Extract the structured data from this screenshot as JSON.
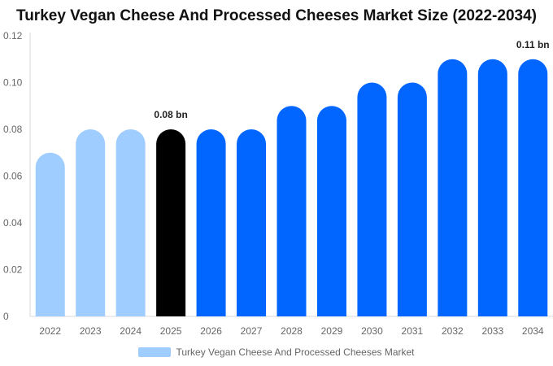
{
  "chart_data": {
    "type": "bar",
    "title": "Turkey Vegan Cheese And Processed Cheeses Market Size (2022-2034)",
    "categories": [
      "2022",
      "2023",
      "2024",
      "2025",
      "2026",
      "2027",
      "2028",
      "2029",
      "2030",
      "2031",
      "2032",
      "2033",
      "2034"
    ],
    "series": [
      {
        "name": "Turkey Vegan Cheese And Processed Cheeses Market",
        "values": [
          0.07,
          0.08,
          0.08,
          0.08,
          0.08,
          0.08,
          0.09,
          0.09,
          0.1,
          0.1,
          0.11,
          0.11,
          0.11
        ]
      }
    ],
    "bar_colors": [
      "#9fcdff",
      "#9fcdff",
      "#9fcdff",
      "#000000",
      "#0066ff",
      "#0066ff",
      "#0066ff",
      "#0066ff",
      "#0066ff",
      "#0066ff",
      "#0066ff",
      "#0066ff",
      "#0066ff"
    ],
    "data_labels": [
      {
        "category": "2025",
        "text": "0.08 bn"
      },
      {
        "category": "2034",
        "text": "0.11 bn"
      }
    ],
    "yticks": [
      "0",
      "0.02",
      "0.04",
      "0.06",
      "0.08",
      "0.10",
      "0.12"
    ],
    "ylim": [
      0,
      0.12
    ],
    "xlabel": "",
    "ylabel": "",
    "grid": false,
    "legend": {
      "position": "bottom",
      "label": "Turkey Vegan Cheese And Processed Cheeses Market",
      "color": "#9fcdff"
    }
  }
}
